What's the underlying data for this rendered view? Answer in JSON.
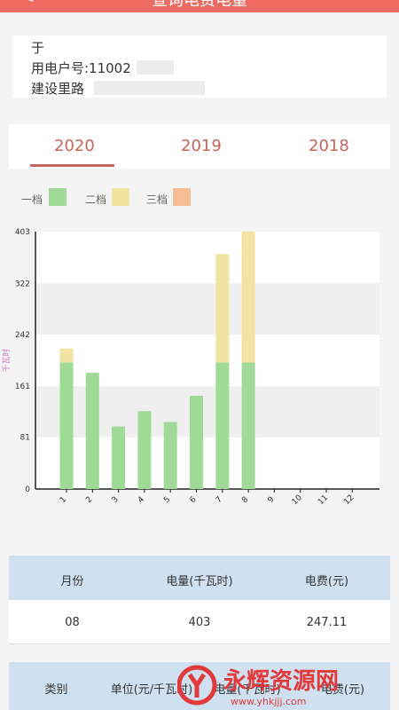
{
  "header": {
    "title": "查询电费电量",
    "back_glyph": "<"
  },
  "user": {
    "name": "于",
    "account_label": "用电户号:11002",
    "address": "建设里路"
  },
  "tabs": [
    {
      "label": "2020",
      "active": true
    },
    {
      "label": "2019",
      "active": false
    },
    {
      "label": "2018",
      "active": false
    }
  ],
  "legend": [
    {
      "label": "一档",
      "color": "#9fdb97"
    },
    {
      "label": "二档",
      "color": "#f2e3a3"
    },
    {
      "label": "三档",
      "color": "#f5bd93"
    }
  ],
  "chart_data": {
    "type": "bar",
    "stacked": true,
    "categories": [
      "1",
      "2",
      "3",
      "4",
      "5",
      "6",
      "7",
      "8",
      "9",
      "10",
      "11",
      "12"
    ],
    "series": [
      {
        "name": "一档",
        "color": "#9fdb97",
        "values": [
          198,
          182,
          98,
          122,
          105,
          146,
          198,
          198,
          0,
          0,
          0,
          0
        ]
      },
      {
        "name": "二档",
        "color": "#f2e3a3",
        "values": [
          22,
          0,
          0,
          0,
          0,
          0,
          170,
          205,
          0,
          0,
          0,
          0
        ]
      },
      {
        "name": "三档",
        "color": "#f5bd93",
        "values": [
          0,
          0,
          0,
          0,
          0,
          0,
          0,
          0,
          0,
          0,
          0,
          0
        ]
      }
    ],
    "yticks": [
      "0",
      "81",
      "161",
      "242",
      "322",
      "403"
    ],
    "ylim": [
      0,
      403
    ],
    "ylabel": "千瓦时",
    "xlabel": "",
    "title": ""
  },
  "table1": {
    "headers": [
      "月份",
      "电量(千瓦时)",
      "电费(元)"
    ],
    "row": [
      "08",
      "403",
      "247.11"
    ]
  },
  "table2": {
    "headers": [
      "类别",
      "单位(元/千瓦时)",
      "电量(千瓦时)",
      "电费(元)"
    ]
  },
  "watermark": {
    "text": "永辉资源网",
    "url": "www.yhkjjj.com"
  }
}
